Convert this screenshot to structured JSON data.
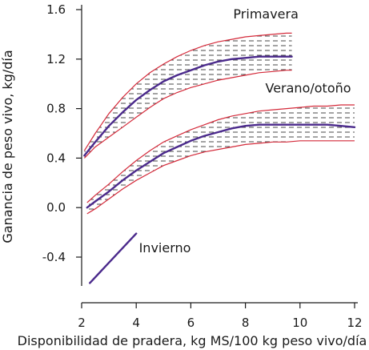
{
  "chart_data": {
    "type": "line",
    "title": "",
    "xlabel": "Disponibilidad de pradera, kg MS/100 kg peso vivo/día",
    "ylabel": "Ganancia de peso vivo, kg/día",
    "xlim": [
      2,
      12
    ],
    "ylim": [
      -0.6,
      1.6
    ],
    "x_ticks": [
      "2",
      "4",
      "6",
      "8",
      "10",
      "12"
    ],
    "y_ticks": [
      "1.6",
      "1.2",
      "0.8",
      "0.4",
      "0.0",
      "-0.4"
    ],
    "grid": false,
    "band_style": "dashed hatch between confidence bounds",
    "colors": {
      "mean": "#4b2a8c",
      "bound": "#d42a3a",
      "hatch": "#333333",
      "axis": "#1a1a1a"
    },
    "series": [
      {
        "name": "Primavera",
        "x": [
          2.1,
          2.5,
          3.0,
          3.5,
          4.0,
          4.5,
          5.0,
          5.5,
          6.0,
          6.5,
          7.0,
          7.5,
          8.0,
          8.5,
          9.0,
          9.5,
          9.7
        ],
        "y": [
          0.42,
          0.53,
          0.66,
          0.77,
          0.87,
          0.95,
          1.02,
          1.07,
          1.11,
          1.15,
          1.18,
          1.2,
          1.21,
          1.22,
          1.22,
          1.22,
          1.22
        ],
        "upper": [
          0.46,
          0.6,
          0.76,
          0.89,
          1.0,
          1.09,
          1.16,
          1.22,
          1.27,
          1.31,
          1.34,
          1.36,
          1.38,
          1.39,
          1.4,
          1.41,
          1.41
        ],
        "lower": [
          0.4,
          0.49,
          0.57,
          0.65,
          0.73,
          0.81,
          0.88,
          0.93,
          0.97,
          1.0,
          1.03,
          1.05,
          1.07,
          1.09,
          1.1,
          1.11,
          1.11
        ]
      },
      {
        "name": "Verano/otoño",
        "x": [
          2.2,
          2.5,
          3.0,
          3.5,
          4.0,
          4.5,
          5.0,
          5.5,
          6.0,
          6.5,
          7.0,
          7.5,
          8.0,
          8.5,
          9.0,
          9.5,
          10.0,
          10.5,
          11.0,
          11.5,
          12.0
        ],
        "y": [
          0.0,
          0.05,
          0.13,
          0.22,
          0.3,
          0.37,
          0.44,
          0.49,
          0.54,
          0.58,
          0.61,
          0.64,
          0.66,
          0.67,
          0.67,
          0.67,
          0.67,
          0.67,
          0.67,
          0.66,
          0.65
        ],
        "upper": [
          0.04,
          0.1,
          0.19,
          0.29,
          0.38,
          0.46,
          0.53,
          0.58,
          0.63,
          0.67,
          0.71,
          0.74,
          0.76,
          0.78,
          0.79,
          0.8,
          0.81,
          0.82,
          0.82,
          0.83,
          0.83
        ],
        "lower": [
          -0.05,
          -0.01,
          0.07,
          0.15,
          0.22,
          0.28,
          0.34,
          0.38,
          0.42,
          0.45,
          0.47,
          0.49,
          0.51,
          0.52,
          0.53,
          0.53,
          0.54,
          0.54,
          0.54,
          0.54,
          0.54
        ]
      },
      {
        "name": "Invierno",
        "x": [
          2.3,
          4.0
        ],
        "y": [
          -0.61,
          -0.21
        ]
      }
    ],
    "annotations": [
      {
        "text": "Primavera",
        "x": 8.75,
        "y": 1.53
      },
      {
        "text": "Verano/otoño",
        "x": 10.3,
        "y": 0.93
      },
      {
        "text": "Invierno",
        "x": 5.05,
        "y": -0.36
      }
    ]
  }
}
